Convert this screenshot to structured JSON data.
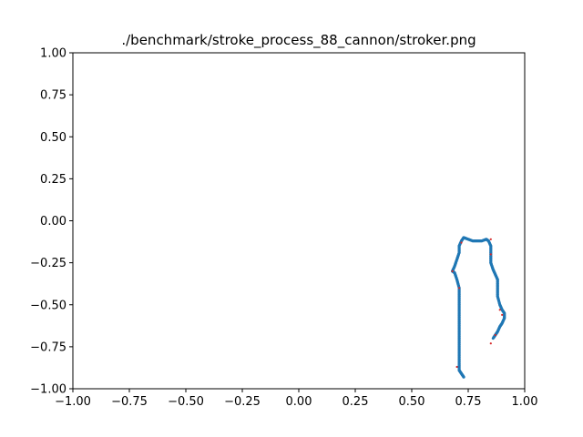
{
  "chart_data": {
    "type": "scatter",
    "title": "./benchmark/stroke_process_88_cannon/stroker.png",
    "xlabel": "",
    "ylabel": "",
    "xlim": [
      -1.0,
      1.0
    ],
    "ylim": [
      -1.0,
      1.0
    ],
    "x_ticks": [
      "−1.00",
      "−0.75",
      "−0.50",
      "−0.25",
      "0.00",
      "0.25",
      "0.50",
      "0.75",
      "1.00"
    ],
    "y_ticks": [
      "1.00",
      "0.75",
      "0.50",
      "0.25",
      "0.00",
      "−0.25",
      "−0.50",
      "−0.75",
      "−1.00"
    ],
    "x_tick_values": [
      -1.0,
      -0.75,
      -0.5,
      -0.25,
      0.0,
      0.25,
      0.5,
      0.75,
      1.0
    ],
    "y_tick_values": [
      1.0,
      0.75,
      0.5,
      0.25,
      0.0,
      -0.25,
      -0.5,
      -0.75,
      -1.0
    ],
    "grid": false,
    "colors": {
      "stroke": "#1f77b4",
      "control": "#d62728"
    },
    "series": [
      {
        "kind": "stroke",
        "points": [
          [
            0.73,
            -0.93
          ],
          [
            0.72,
            -0.91
          ],
          [
            0.71,
            -0.89
          ],
          [
            0.71,
            -0.85
          ],
          [
            0.71,
            -0.8
          ],
          [
            0.71,
            -0.75
          ],
          [
            0.71,
            -0.7
          ],
          [
            0.71,
            -0.65
          ],
          [
            0.71,
            -0.6
          ],
          [
            0.71,
            -0.55
          ],
          [
            0.71,
            -0.5
          ],
          [
            0.71,
            -0.45
          ],
          [
            0.71,
            -0.4
          ],
          [
            0.7,
            -0.35
          ],
          [
            0.69,
            -0.31
          ],
          [
            0.68,
            -0.3
          ],
          [
            0.69,
            -0.27
          ],
          [
            0.7,
            -0.23
          ],
          [
            0.71,
            -0.19
          ],
          [
            0.71,
            -0.15
          ],
          [
            0.72,
            -0.12
          ],
          [
            0.73,
            -0.1
          ],
          [
            0.75,
            -0.11
          ],
          [
            0.77,
            -0.12
          ],
          [
            0.79,
            -0.12
          ],
          [
            0.81,
            -0.12
          ],
          [
            0.83,
            -0.11
          ],
          [
            0.84,
            -0.12
          ],
          [
            0.85,
            -0.15
          ],
          [
            0.85,
            -0.2
          ],
          [
            0.85,
            -0.25
          ],
          [
            0.86,
            -0.29
          ],
          [
            0.87,
            -0.32
          ],
          [
            0.88,
            -0.35
          ],
          [
            0.88,
            -0.4
          ],
          [
            0.88,
            -0.45
          ],
          [
            0.89,
            -0.5
          ],
          [
            0.9,
            -0.53
          ],
          [
            0.91,
            -0.55
          ],
          [
            0.91,
            -0.58
          ],
          [
            0.9,
            -0.61
          ],
          [
            0.89,
            -0.63
          ],
          [
            0.88,
            -0.66
          ],
          [
            0.87,
            -0.68
          ],
          [
            0.86,
            -0.7
          ]
        ]
      },
      {
        "kind": "control-points",
        "points": [
          [
            0.7,
            -0.87
          ],
          [
            0.71,
            -0.4
          ],
          [
            0.68,
            -0.3
          ],
          [
            0.72,
            -0.13
          ],
          [
            0.85,
            -0.11
          ],
          [
            0.85,
            -0.2
          ],
          [
            0.89,
            -0.53
          ],
          [
            0.9,
            -0.56
          ],
          [
            0.87,
            -0.68
          ],
          [
            0.85,
            -0.73
          ]
        ]
      }
    ]
  }
}
